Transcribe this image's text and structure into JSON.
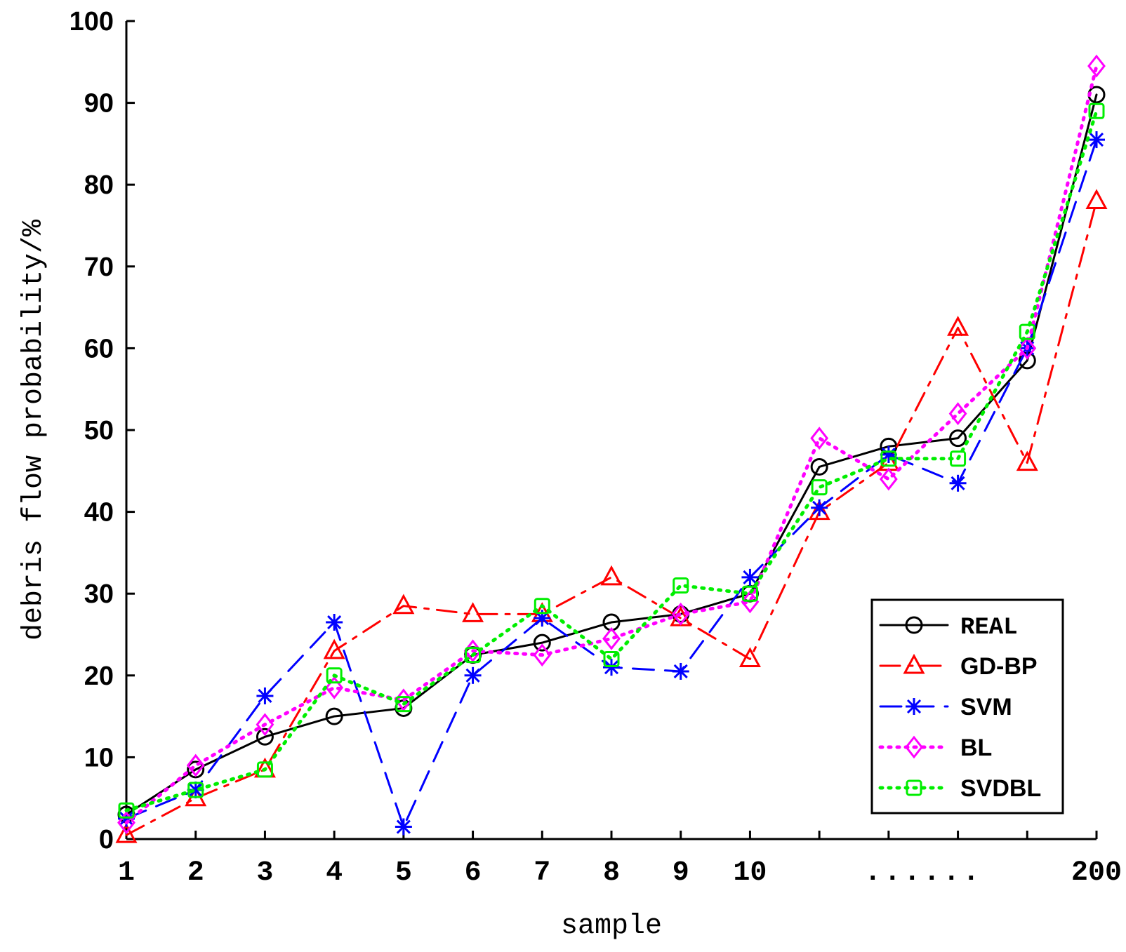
{
  "chart_data": {
    "type": "line",
    "xlabel": "sample",
    "ylabel": "debris flow probability/%",
    "ylim": [
      0,
      100
    ],
    "yticks": [
      0,
      10,
      20,
      30,
      40,
      50,
      60,
      70,
      80,
      90,
      100
    ],
    "x_tick_labels": [
      "1",
      "2",
      "3",
      "4",
      "5",
      "6",
      "7",
      "8",
      "9",
      "10",
      "",
      "",
      "",
      "",
      "200"
    ],
    "x_ellipsis": "......",
    "grid": false,
    "legend_position": "bottom-right",
    "series": [
      {
        "name": "REAL",
        "color": "#000000",
        "dash": "solid",
        "marker": "circle",
        "values": [
          3,
          8.5,
          12.5,
          15,
          16,
          22.5,
          24,
          26.5,
          27.5,
          30,
          45.5,
          48,
          49,
          58.5,
          91
        ]
      },
      {
        "name": "GD-BP",
        "color": "#ff0000",
        "dash": "dashdot",
        "marker": "triangle",
        "values": [
          0.5,
          5,
          8.5,
          23,
          28.5,
          27.5,
          27.5,
          32,
          27,
          22,
          40,
          46,
          62.5,
          46,
          78
        ]
      },
      {
        "name": "SVM",
        "color": "#0000ff",
        "dash": "dashed",
        "marker": "star",
        "values": [
          2.5,
          6,
          17.5,
          26.5,
          1.5,
          20,
          27,
          21,
          20.5,
          32,
          40.5,
          47,
          43.5,
          60,
          85.5
        ]
      },
      {
        "name": "BL",
        "color": "#ff00ff",
        "dash": "dotted",
        "marker": "diamond",
        "values": [
          2,
          9,
          14,
          18.5,
          17,
          23,
          22.5,
          24.5,
          27.5,
          29,
          49,
          44,
          52,
          60,
          94.5
        ]
      },
      {
        "name": "SVDBL",
        "color": "#00ee00",
        "dash": "dotted",
        "marker": "square",
        "values": [
          3.5,
          6,
          8.5,
          20,
          16.5,
          22.5,
          28.5,
          22,
          31,
          30,
          43,
          46.5,
          46.5,
          62,
          89
        ]
      }
    ]
  }
}
